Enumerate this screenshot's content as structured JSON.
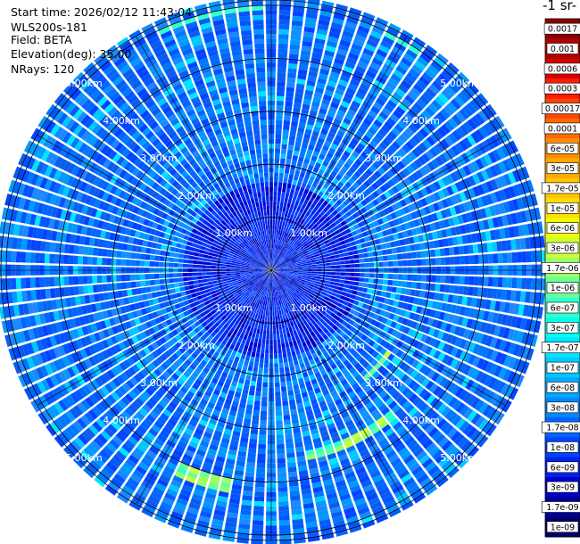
{
  "header": {
    "start_time": "Start time: 2026/02/12 11:43:04",
    "instrument": "WLS200s-181",
    "field": "Field: BETA",
    "elevation": "Elevation(deg): 35.00",
    "nrays": "NRays: 120"
  },
  "chart_data": {
    "type": "heatmap",
    "projection": "polar",
    "range_ring_labels": [
      "1.00km",
      "2.00km",
      "3.00km",
      "4.00km",
      "5.00km"
    ],
    "range_rings_km": [
      1,
      2,
      3,
      4,
      5
    ],
    "max_range_km": 5.1,
    "nrays": 120,
    "colorbar": {
      "title": "-1 sr-",
      "tick_labels": [
        "0.0017",
        "0.001",
        "0.0006",
        "0.0003",
        "0.00017",
        "0.0001",
        "6e-05",
        "3e-05",
        "1.7e-05",
        "1e-05",
        "6e-06",
        "3e-06",
        "1.7e-06",
        "1e-06",
        "6e-07",
        "3e-07",
        "1.7e-07",
        "1e-07",
        "6e-08",
        "3e-08",
        "1.7e-08",
        "1e-08",
        "6e-09",
        "3e-09",
        "1.7e-09",
        "1e-09"
      ],
      "colors": [
        "#8b0000",
        "#b00000",
        "#d40000",
        "#ff1a00",
        "#ff4400",
        "#ff6a00",
        "#ff8c00",
        "#ffa800",
        "#ffc400",
        "#ffdd00",
        "#eeff00",
        "#ccff33",
        "#99ff66",
        "#66ff99",
        "#33ffcc",
        "#00ffee",
        "#00e5ff",
        "#00c8ff",
        "#00a8ff",
        "#0088ff",
        "#0066ff",
        "#0044ff",
        "#0022ee",
        "#0000cc",
        "#000099",
        "#00006a"
      ]
    }
  }
}
